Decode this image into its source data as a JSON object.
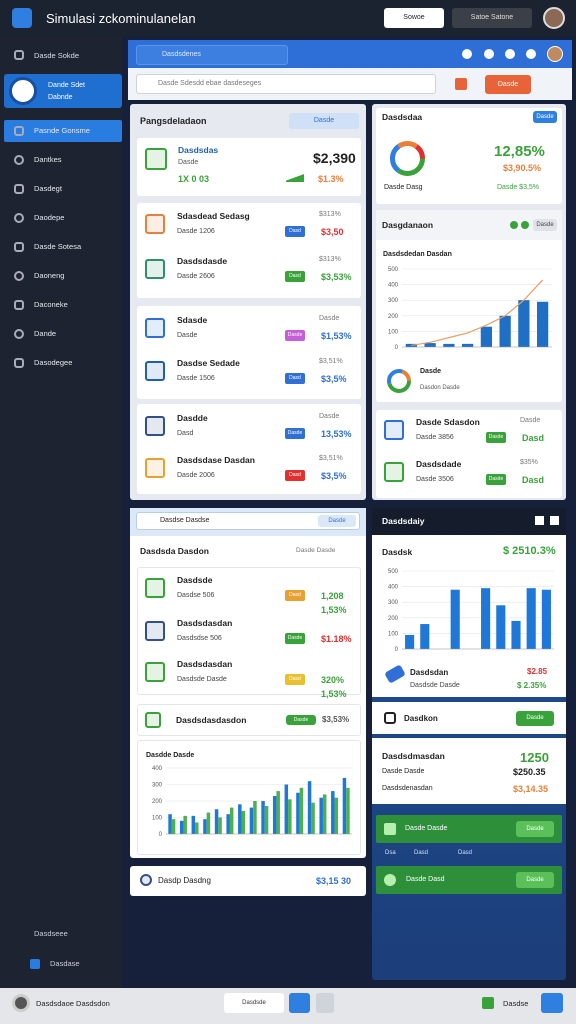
{
  "header": {
    "title": "Simulasi zckominulanelan",
    "button1": "Sowoe",
    "button2": "Satoe Satone"
  },
  "sidebar": {
    "top": "Dasde Sokde",
    "profile": "Dande Sdet",
    "profile_sub": "Dabnde",
    "items": [
      "Pasnde Gonsme",
      "Dantkes",
      "Dasdegt",
      "Daodepe",
      "Dasde Sotesa",
      "Daoneng",
      "Daconeke",
      "Dande",
      "Dasodegee"
    ],
    "footer": [
      "Dasdseee",
      "Dasdase"
    ]
  },
  "topbar": {
    "search": "Dasdsdenes"
  },
  "toolbar": {
    "input": "Dasde Sdesdd ebae dasdeseges",
    "button": "Dasde"
  },
  "overview": {
    "title": "Pangsdeladaon",
    "pill": "Dasde",
    "summary": {
      "name": "Dasdsdas",
      "sub": "Dasde",
      "foot": "1X 0 03",
      "value": "$2,390",
      "change": "$1.3%"
    }
  },
  "left_rows": [
    {
      "name": "Sdasdead Sedasg",
      "sub": "Dasde 1206",
      "note": "$313%",
      "badge": "Dasd",
      "badge_color": "#2f6fd6",
      "value": "$3,50",
      "value_color": "#e03030",
      "icon_color": "#e8803a"
    },
    {
      "name": "Dasdsdasde",
      "sub": "Dasde 2606",
      "note": "$313%",
      "badge": "Dasd",
      "badge_color": "#3aa23a",
      "value": "$3,53%",
      "value_color": "#3aa23a",
      "icon_color": "#2f8f6a"
    },
    {
      "name": "Sdasde",
      "sub": "Dasde",
      "note": "Dasde",
      "badge": "Dasde",
      "badge_color": "#c45fd8",
      "value": "$1,53%",
      "value_color": "#2f6fd6",
      "icon_color": "#2f6fd6"
    },
    {
      "name": "Dasdse Sedade",
      "sub": "Dasde 1506",
      "note": "$3,51%",
      "badge": "Dasd",
      "badge_color": "#2f6fd6",
      "value": "$3,5%",
      "value_color": "#2f6fd6",
      "icon_color": "#1f5fb0"
    },
    {
      "name": "Dasdde",
      "sub": "Dasd",
      "note": "Dasde",
      "badge": "Dasde",
      "badge_color": "#2f6fd6",
      "value": "13,53%",
      "value_color": "#2f6fd6",
      "icon_color": "#34508a"
    },
    {
      "name": "Dasdsdase Dasdan",
      "sub": "Dasde 2006",
      "note": "$3,51%",
      "badge": "Dasd",
      "badge_color": "#e03030",
      "value": "$3,5%",
      "value_color": "#2f6fd6",
      "icon_color": "#e8a030"
    }
  ],
  "right_summary": {
    "title": "Dasdsdaa",
    "pill": "Dasde",
    "value": "12,85%",
    "change": "$3,90.5%",
    "label": "Dasde Dasg",
    "note": "Dasde $3,5%"
  },
  "right_chart_card": {
    "title": "Dasgdanaon",
    "pill": "Dasde",
    "legend": "Dasde",
    "legend_sub": "Dasdon Dasde"
  },
  "right_rows": [
    {
      "name": "Dasde Sdasdon",
      "sub": "Dasde 3856",
      "note": "Dasde",
      "badge": "Dasde",
      "badge_color": "#3aa23a",
      "value": "Dasd",
      "value_color": "#3aa23a",
      "icon_color": "#2f6fd6"
    },
    {
      "name": "Dasdsdade",
      "sub": "Dasde 3506",
      "note": "$35%",
      "badge": "Dasde",
      "badge_color": "#3aa23a",
      "value": "Dasd",
      "value_color": "#3aa23a",
      "icon_color": "#3aa23a"
    }
  ],
  "middle": {
    "search": "Dasdse Dasdse",
    "pill": "Dasde",
    "title": "Dasdsda Dasdon",
    "note": "Dasde Dasde",
    "rows": [
      {
        "name": "Dasdsde",
        "sub": "Dasdse 506",
        "badge": "Dasd",
        "badge_color": "#e8a030",
        "value": "1,208",
        "value_color": "#3aa23a",
        "value2": "1,53%",
        "icon_color": "#3aa23a"
      },
      {
        "name": "Dasdsdasdan",
        "sub": "Dasdsdse 506",
        "badge": "Dasde",
        "badge_color": "#3aa23a",
        "value": "$1.18%",
        "value_color": "#e03030",
        "value2": "",
        "icon_color": "#34508a"
      },
      {
        "name": "Dasdsdasdan",
        "sub": "Dasdsde Dasde",
        "badge": "Dasd",
        "badge_color": "#e8c030",
        "value": "320%",
        "value_color": "#3aa23a",
        "value2": "1,53%",
        "icon_color": "#3aa23a"
      }
    ],
    "wide_row": {
      "name": "Dasdsdasdasdon",
      "badge": "Dasde",
      "value": "$3,53%"
    }
  },
  "bottom_left": {
    "name": "Dasdp Dasdng",
    "value": "$3,15 30"
  },
  "dark_panel": {
    "title": "Dasdsdaiy",
    "row": {
      "name": "Dasdsdan",
      "sub": "Dasdsde Dasde",
      "value": "$2.85",
      "value2": "$ 2.35%"
    },
    "action": {
      "name": "Dasdkon",
      "button": "Dasde"
    },
    "stats": {
      "title": "Dasdsdmasdan",
      "value": "1250",
      "l1": "Dasde Dasde",
      "v1": "$250.35",
      "l2": "Dasdsdenasdan",
      "v2": "$3,14.35"
    },
    "green1": {
      "label": "Dasde Dasde",
      "button": "Dasde",
      "tags": [
        "Dsa",
        "Dasd",
        "Dasd"
      ]
    },
    "green2": {
      "label": "Dasde Dasd",
      "button": "Dasde"
    }
  },
  "footer": {
    "text": "Dasdsdaoe Dasdsdon",
    "button": "Dasdsde",
    "right": "Dasdse"
  },
  "charts": [
    {
      "type": "bar",
      "title": "Dasdsdedan Dasdan",
      "ylim": [
        0,
        500
      ],
      "yticks": [
        0,
        100,
        200,
        300,
        400,
        500
      ],
      "series": [
        {
          "type": "bar",
          "color": "#1f6fc4",
          "values": [
            20,
            25,
            20,
            20,
            130,
            200,
            300,
            290
          ]
        },
        {
          "type": "line",
          "color": "#e8a060",
          "values": [
            10,
            30,
            60,
            90,
            140,
            200,
            300,
            430
          ]
        }
      ]
    },
    {
      "type": "bar",
      "title": "Dasdsk",
      "subtitle": "$ 2510.3%",
      "ylim": [
        0,
        500
      ],
      "yticks": [
        0,
        100,
        200,
        300,
        400,
        500
      ],
      "series": [
        {
          "type": "bar",
          "color": "#1f78d8",
          "values": [
            90,
            160,
            0,
            380,
            0,
            390,
            280,
            180,
            390,
            380
          ]
        }
      ]
    },
    {
      "type": "bar",
      "title": "Dasdde Dasde",
      "ylim": [
        0,
        400
      ],
      "yticks": [
        0,
        100,
        200,
        300,
        400
      ],
      "series": [
        {
          "type": "bar",
          "color": "#1f78d8",
          "values": [
            120,
            80,
            110,
            90,
            150,
            120,
            180,
            160,
            200,
            230,
            300,
            250,
            320,
            220,
            260,
            340
          ]
        },
        {
          "type": "bar",
          "color": "#4caf50",
          "values": [
            90,
            110,
            70,
            130,
            100,
            160,
            140,
            200,
            170,
            260,
            210,
            280,
            190,
            240,
            220,
            280
          ]
        }
      ]
    }
  ]
}
